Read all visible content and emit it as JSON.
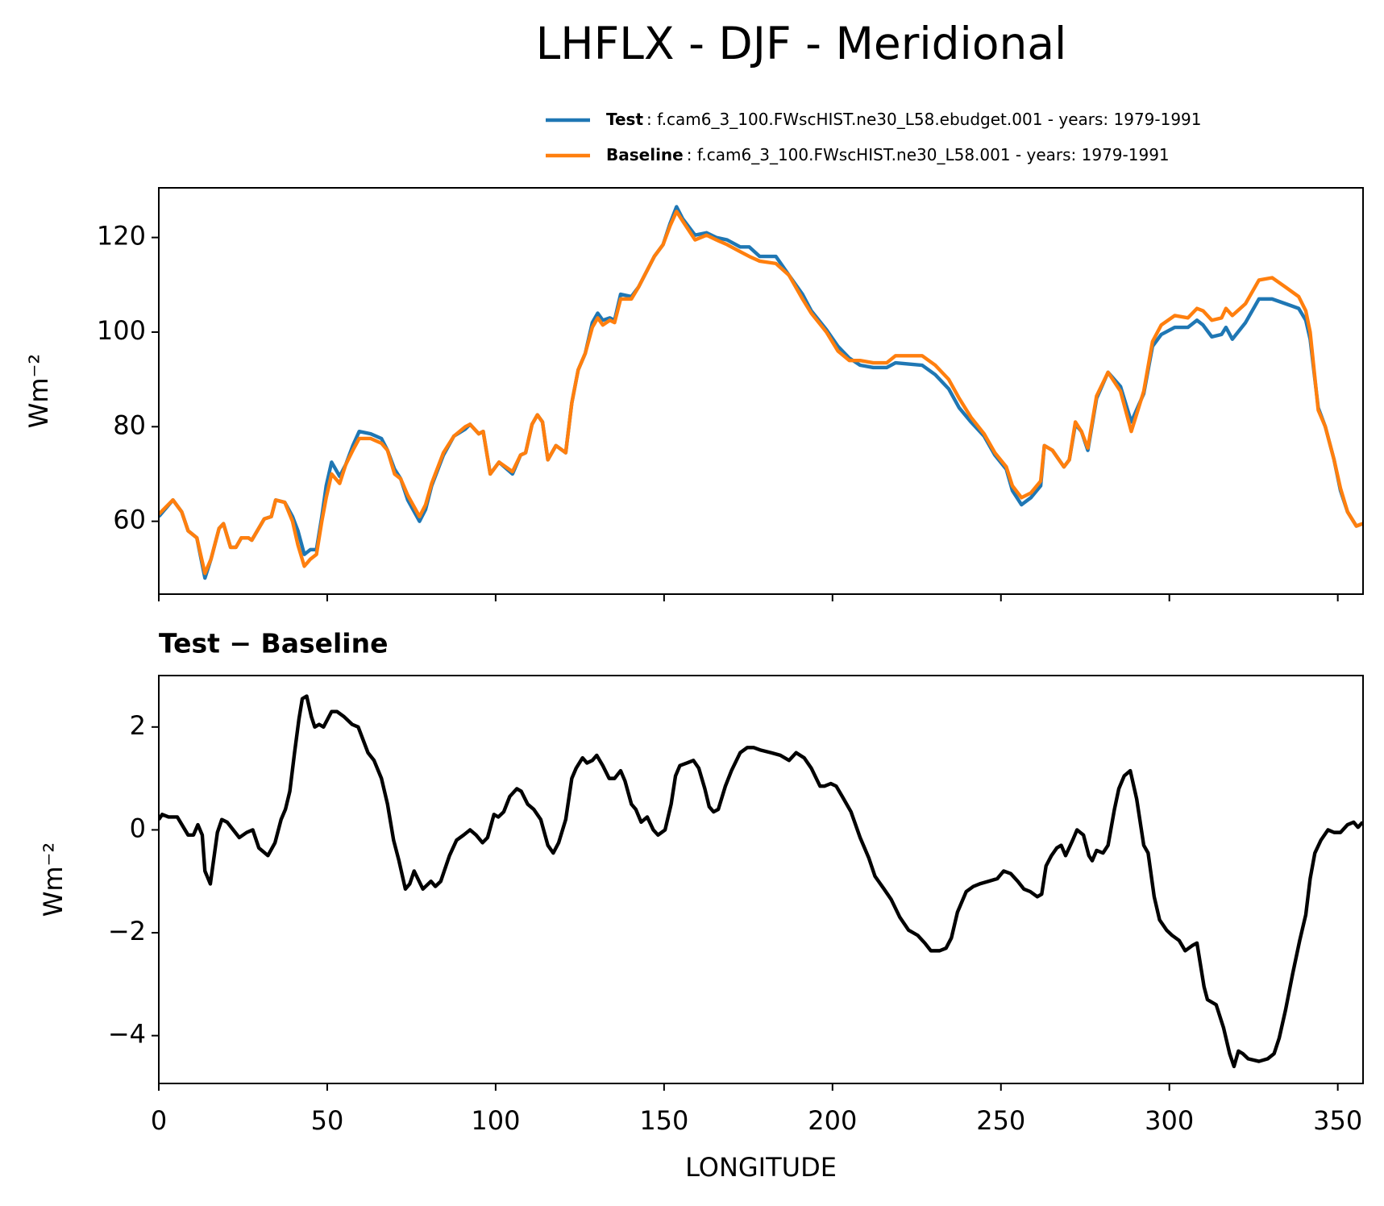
{
  "chart_data": [
    {
      "type": "line",
      "title": "LHFLX - DJF - Meridional",
      "ylabel": "Wm⁻²",
      "xlim": [
        0,
        357.5
      ],
      "xticks": [
        0,
        50,
        100,
        150,
        200,
        250,
        300,
        350
      ],
      "ylim": [
        44.6,
        130.5
      ],
      "yticks": [
        60,
        80,
        100,
        120
      ],
      "legend": "upper right",
      "x": [
        0,
        4.2,
        6.8,
        8.7,
        11.3,
        13.7,
        15.5,
        17.9,
        19.2,
        21.3,
        22.9,
        24.5,
        26.6,
        27.6,
        31.3,
        33.4,
        34.7,
        37.4,
        39.7,
        41.3,
        43.2,
        45,
        46.8,
        48.4,
        49.7,
        51.3,
        53.7,
        55.5,
        57.6,
        59.5,
        62.9,
        66.1,
        67.9,
        70,
        71.8,
        73.9,
        77.4,
        79.2,
        81,
        84.5,
        87.6,
        91,
        92.4,
        95,
        96.3,
        98.4,
        101,
        105,
        107.4,
        108.9,
        110.8,
        112.4,
        113.9,
        115.5,
        117.9,
        120.8,
        122.6,
        124.5,
        126.6,
        128.7,
        130.3,
        131.8,
        133.9,
        135.3,
        137.1,
        140.3,
        142.4,
        147.1,
        149.7,
        151.8,
        153.7,
        155.5,
        159.2,
        162.6,
        165.5,
        168.7,
        172.6,
        175.3,
        178.4,
        183.2,
        187.1,
        191.1,
        193.7,
        198.2,
        201.6,
        205,
        208.2,
        212.1,
        216.1,
        218.7,
        226.6,
        230.5,
        234.5,
        237.6,
        241.1,
        245,
        248.2,
        251.6,
        253.4,
        256.1,
        258.9,
        261.8,
        262.9,
        265.3,
        268.7,
        270.3,
        272.1,
        273.9,
        275.8,
        278.4,
        281.8,
        285.5,
        288.7,
        292.4,
        295,
        297.6,
        301.6,
        305.5,
        308.2,
        310,
        312.6,
        315.5,
        316.8,
        318.7,
        322.6,
        326.6,
        330.5,
        334.5,
        338.4,
        340.5,
        341.8,
        344.2,
        346.3,
        348.9,
        350.8,
        352.9,
        355.5,
        357.4
      ],
      "series": [
        {
          "name": "Test",
          "description": ": f.cam6_3_100.FWscHIST.ne30_L58.ebudget.001 - years: 1979-1991",
          "color": "#1f77b4",
          "values": [
            61,
            64.5,
            62,
            58,
            56.5,
            48,
            52,
            58.5,
            59.5,
            54.5,
            54.5,
            56.5,
            56.5,
            56,
            60.5,
            61,
            64.5,
            64,
            61,
            58,
            53,
            54,
            54,
            61,
            67.5,
            72.5,
            69.5,
            72,
            76,
            79,
            78.5,
            77.5,
            75,
            71,
            69,
            64.5,
            60,
            62.5,
            67.5,
            74,
            78,
            79.5,
            80.5,
            78.5,
            79,
            70,
            72.5,
            70,
            74,
            74.5,
            80.5,
            82.5,
            81,
            73,
            76,
            74.5,
            85,
            92,
            95.5,
            102,
            104,
            102.5,
            103,
            102.5,
            108,
            107.5,
            109.5,
            116,
            118.5,
            123,
            126.5,
            124,
            120.5,
            121,
            120,
            119.5,
            118,
            118,
            116,
            116,
            112,
            108,
            104.5,
            100.5,
            97,
            94.5,
            93,
            92.5,
            92.5,
            93.5,
            93,
            91,
            88,
            84,
            81,
            78,
            74,
            71,
            66.5,
            63.5,
            65,
            67.5,
            76,
            75,
            71.5,
            73,
            80.5,
            79,
            75,
            86,
            91.5,
            88.5,
            81,
            87,
            97,
            99.5,
            101,
            101,
            102.5,
            101.5,
            99,
            99.5,
            101,
            98.5,
            102,
            107,
            107,
            106,
            105,
            102.5,
            98.5,
            84,
            80,
            73,
            66.5,
            62,
            59,
            59.5
          ]
        },
        {
          "name": "Baseline",
          "description": ": f.cam6_3_100.FWscHIST.ne30_L58.001 - years: 1979-1991",
          "color": "#ff7f0e",
          "values": [
            61.5,
            64.5,
            62,
            58,
            56.5,
            49,
            52,
            58.5,
            59.5,
            54.5,
            54.5,
            56.5,
            56.5,
            56,
            60.5,
            61,
            64.5,
            64,
            60,
            55,
            50.5,
            52,
            53,
            60,
            65,
            70,
            68,
            72,
            75,
            77.5,
            77.5,
            76.5,
            75,
            70,
            69,
            65.5,
            61,
            63.5,
            68,
            74.5,
            78,
            80,
            80.5,
            78.5,
            79,
            70,
            72.5,
            70.5,
            74,
            74.5,
            80.5,
            82.5,
            81,
            73,
            76,
            74.5,
            85,
            92,
            95.5,
            101,
            103,
            101.5,
            102.5,
            102,
            107,
            107,
            109.5,
            116,
            118.5,
            122.5,
            125.5,
            123.5,
            119.5,
            120.5,
            119.5,
            118.5,
            117,
            116,
            115,
            114.5,
            112,
            107,
            104,
            100,
            96,
            94,
            94,
            93.5,
            93.5,
            95,
            95,
            93,
            90,
            86,
            82,
            78.5,
            74.5,
            71.5,
            67.5,
            65,
            66,
            68.5,
            76,
            75,
            71.5,
            73,
            81,
            79,
            75.5,
            86.5,
            91.5,
            87.5,
            79,
            87.5,
            98,
            101.5,
            103.5,
            103,
            105,
            104.5,
            102.5,
            103,
            105,
            103.5,
            106,
            111,
            111.5,
            109.5,
            107.5,
            104.5,
            100,
            83.5,
            80,
            73,
            67,
            62,
            59,
            59.5
          ]
        }
      ]
    },
    {
      "type": "line",
      "title": "Test − Baseline",
      "ylabel": "Wm⁻²",
      "xlabel": "LONGITUDE",
      "xlim": [
        0,
        357.5
      ],
      "xticks": [
        0,
        50,
        100,
        150,
        200,
        250,
        300,
        350
      ],
      "ylim": [
        -4.93,
        3.0
      ],
      "yticks": [
        {
          "value": -4,
          "label": "−4"
        },
        {
          "value": -2,
          "label": "−2"
        },
        0,
        2
      ],
      "x": [
        0,
        1,
        2.9,
        5.5,
        8.7,
        10.3,
        11.6,
        12.9,
        13.7,
        15.3,
        17.4,
        18.7,
        20.3,
        23.9,
        26.1,
        27.9,
        29.7,
        32.4,
        34.5,
        36.3,
        37.6,
        38.9,
        40.3,
        41.6,
        42.6,
        43.9,
        45.3,
        46.3,
        47.6,
        48.9,
        51.3,
        52.9,
        55,
        57.4,
        59.2,
        62.1,
        63.9,
        66.1,
        67.9,
        69.7,
        71.3,
        73.2,
        74.5,
        75.8,
        78.4,
        80.8,
        82.1,
        83.7,
        86.3,
        88.4,
        90.5,
        92.4,
        94.2,
        96.1,
        97.6,
        99.5,
        100.8,
        102.4,
        104.2,
        106.3,
        107.6,
        109.5,
        111.3,
        113.4,
        115.5,
        117.1,
        118.7,
        120.8,
        122.6,
        123.9,
        125.8,
        127.1,
        128.7,
        130,
        131.8,
        133.7,
        135.3,
        137.1,
        138.4,
        140.3,
        141.6,
        143.2,
        145,
        146.8,
        148.2,
        150.3,
        152.1,
        153.4,
        154.7,
        156.8,
        158.7,
        160.3,
        162.1,
        163.4,
        164.7,
        166.1,
        168.2,
        170,
        172.6,
        174.7,
        176.6,
        178.7,
        181.8,
        184.5,
        187.1,
        189.2,
        191.6,
        193.7,
        196.3,
        197.6,
        199.5,
        201.1,
        202.9,
        205.5,
        208.2,
        210.8,
        212.6,
        215.3,
        217.4,
        220,
        222.6,
        225.3,
        227.4,
        229.2,
        231.8,
        233.7,
        235.3,
        237.1,
        239.7,
        241.8,
        243.7,
        246.3,
        248.9,
        250.8,
        252.9,
        255,
        256.8,
        258.7,
        260.8,
        262.1,
        263.4,
        265,
        266.6,
        267.9,
        269.2,
        271.3,
        272.6,
        274.5,
        276.1,
        277.1,
        278.4,
        280.3,
        281.8,
        283.7,
        285,
        286.6,
        288.4,
        290.3,
        292.4,
        293.7,
        295.5,
        297.1,
        299.2,
        300.8,
        302.9,
        304.7,
        306.8,
        308.2,
        310.3,
        311.3,
        313.9,
        316.1,
        317.9,
        319.2,
        320.5,
        321.8,
        323.4,
        326.6,
        329.2,
        331.1,
        332.6,
        334.5,
        336.6,
        338.7,
        340.5,
        341.8,
        343.2,
        345,
        347.1,
        348.9,
        350.8,
        352.9,
        354.7,
        356,
        357.4
      ],
      "series": [
        {
          "color": "#000000",
          "values": [
            0.2,
            0.3,
            0.25,
            0.25,
            -0.1,
            -0.1,
            0.1,
            -0.1,
            -0.8,
            -1.05,
            -0.05,
            0.2,
            0.15,
            -0.15,
            -0.05,
            0,
            -0.35,
            -0.5,
            -0.25,
            0.2,
            0.4,
            0.75,
            1.5,
            2.15,
            2.55,
            2.6,
            2.2,
            2.0,
            2.05,
            2.0,
            2.3,
            2.3,
            2.2,
            2.05,
            2.0,
            1.5,
            1.35,
            1.0,
            0.5,
            -0.2,
            -0.6,
            -1.15,
            -1.05,
            -0.8,
            -1.15,
            -1.0,
            -1.1,
            -1.0,
            -0.5,
            -0.2,
            -0.1,
            0,
            -0.1,
            -0.25,
            -0.15,
            0.3,
            0.25,
            0.35,
            0.65,
            0.8,
            0.75,
            0.5,
            0.4,
            0.2,
            -0.3,
            -0.45,
            -0.25,
            0.2,
            1.0,
            1.2,
            1.4,
            1.3,
            1.35,
            1.45,
            1.25,
            1.0,
            1.0,
            1.15,
            0.95,
            0.5,
            0.4,
            0.15,
            0.25,
            0,
            -0.1,
            0,
            0.5,
            1.05,
            1.25,
            1.3,
            1.35,
            1.2,
            0.8,
            0.45,
            0.35,
            0.4,
            0.85,
            1.15,
            1.5,
            1.6,
            1.6,
            1.55,
            1.5,
            1.45,
            1.35,
            1.5,
            1.4,
            1.2,
            0.85,
            0.85,
            0.9,
            0.85,
            0.65,
            0.35,
            -0.15,
            -0.55,
            -0.9,
            -1.15,
            -1.35,
            -1.7,
            -1.95,
            -2.05,
            -2.2,
            -2.35,
            -2.35,
            -2.3,
            -2.1,
            -1.6,
            -1.2,
            -1.1,
            -1.05,
            -1.0,
            -0.95,
            -0.8,
            -0.85,
            -1.0,
            -1.15,
            -1.2,
            -1.3,
            -1.25,
            -0.7,
            -0.5,
            -0.35,
            -0.3,
            -0.5,
            -0.2,
            0,
            -0.1,
            -0.5,
            -0.6,
            -0.4,
            -0.45,
            -0.3,
            0.4,
            0.8,
            1.05,
            1.15,
            0.6,
            -0.3,
            -0.45,
            -1.3,
            -1.75,
            -1.95,
            -2.05,
            -2.15,
            -2.35,
            -2.25,
            -2.2,
            -3.05,
            -3.3,
            -3.4,
            -3.85,
            -4.35,
            -4.6,
            -4.3,
            -4.35,
            -4.45,
            -4.5,
            -4.45,
            -4.35,
            -4.05,
            -3.5,
            -2.8,
            -2.15,
            -1.65,
            -0.95,
            -0.45,
            -0.2,
            0,
            -0.05,
            -0.05,
            0.1,
            0.15,
            0.05,
            0.15
          ]
        }
      ]
    }
  ]
}
